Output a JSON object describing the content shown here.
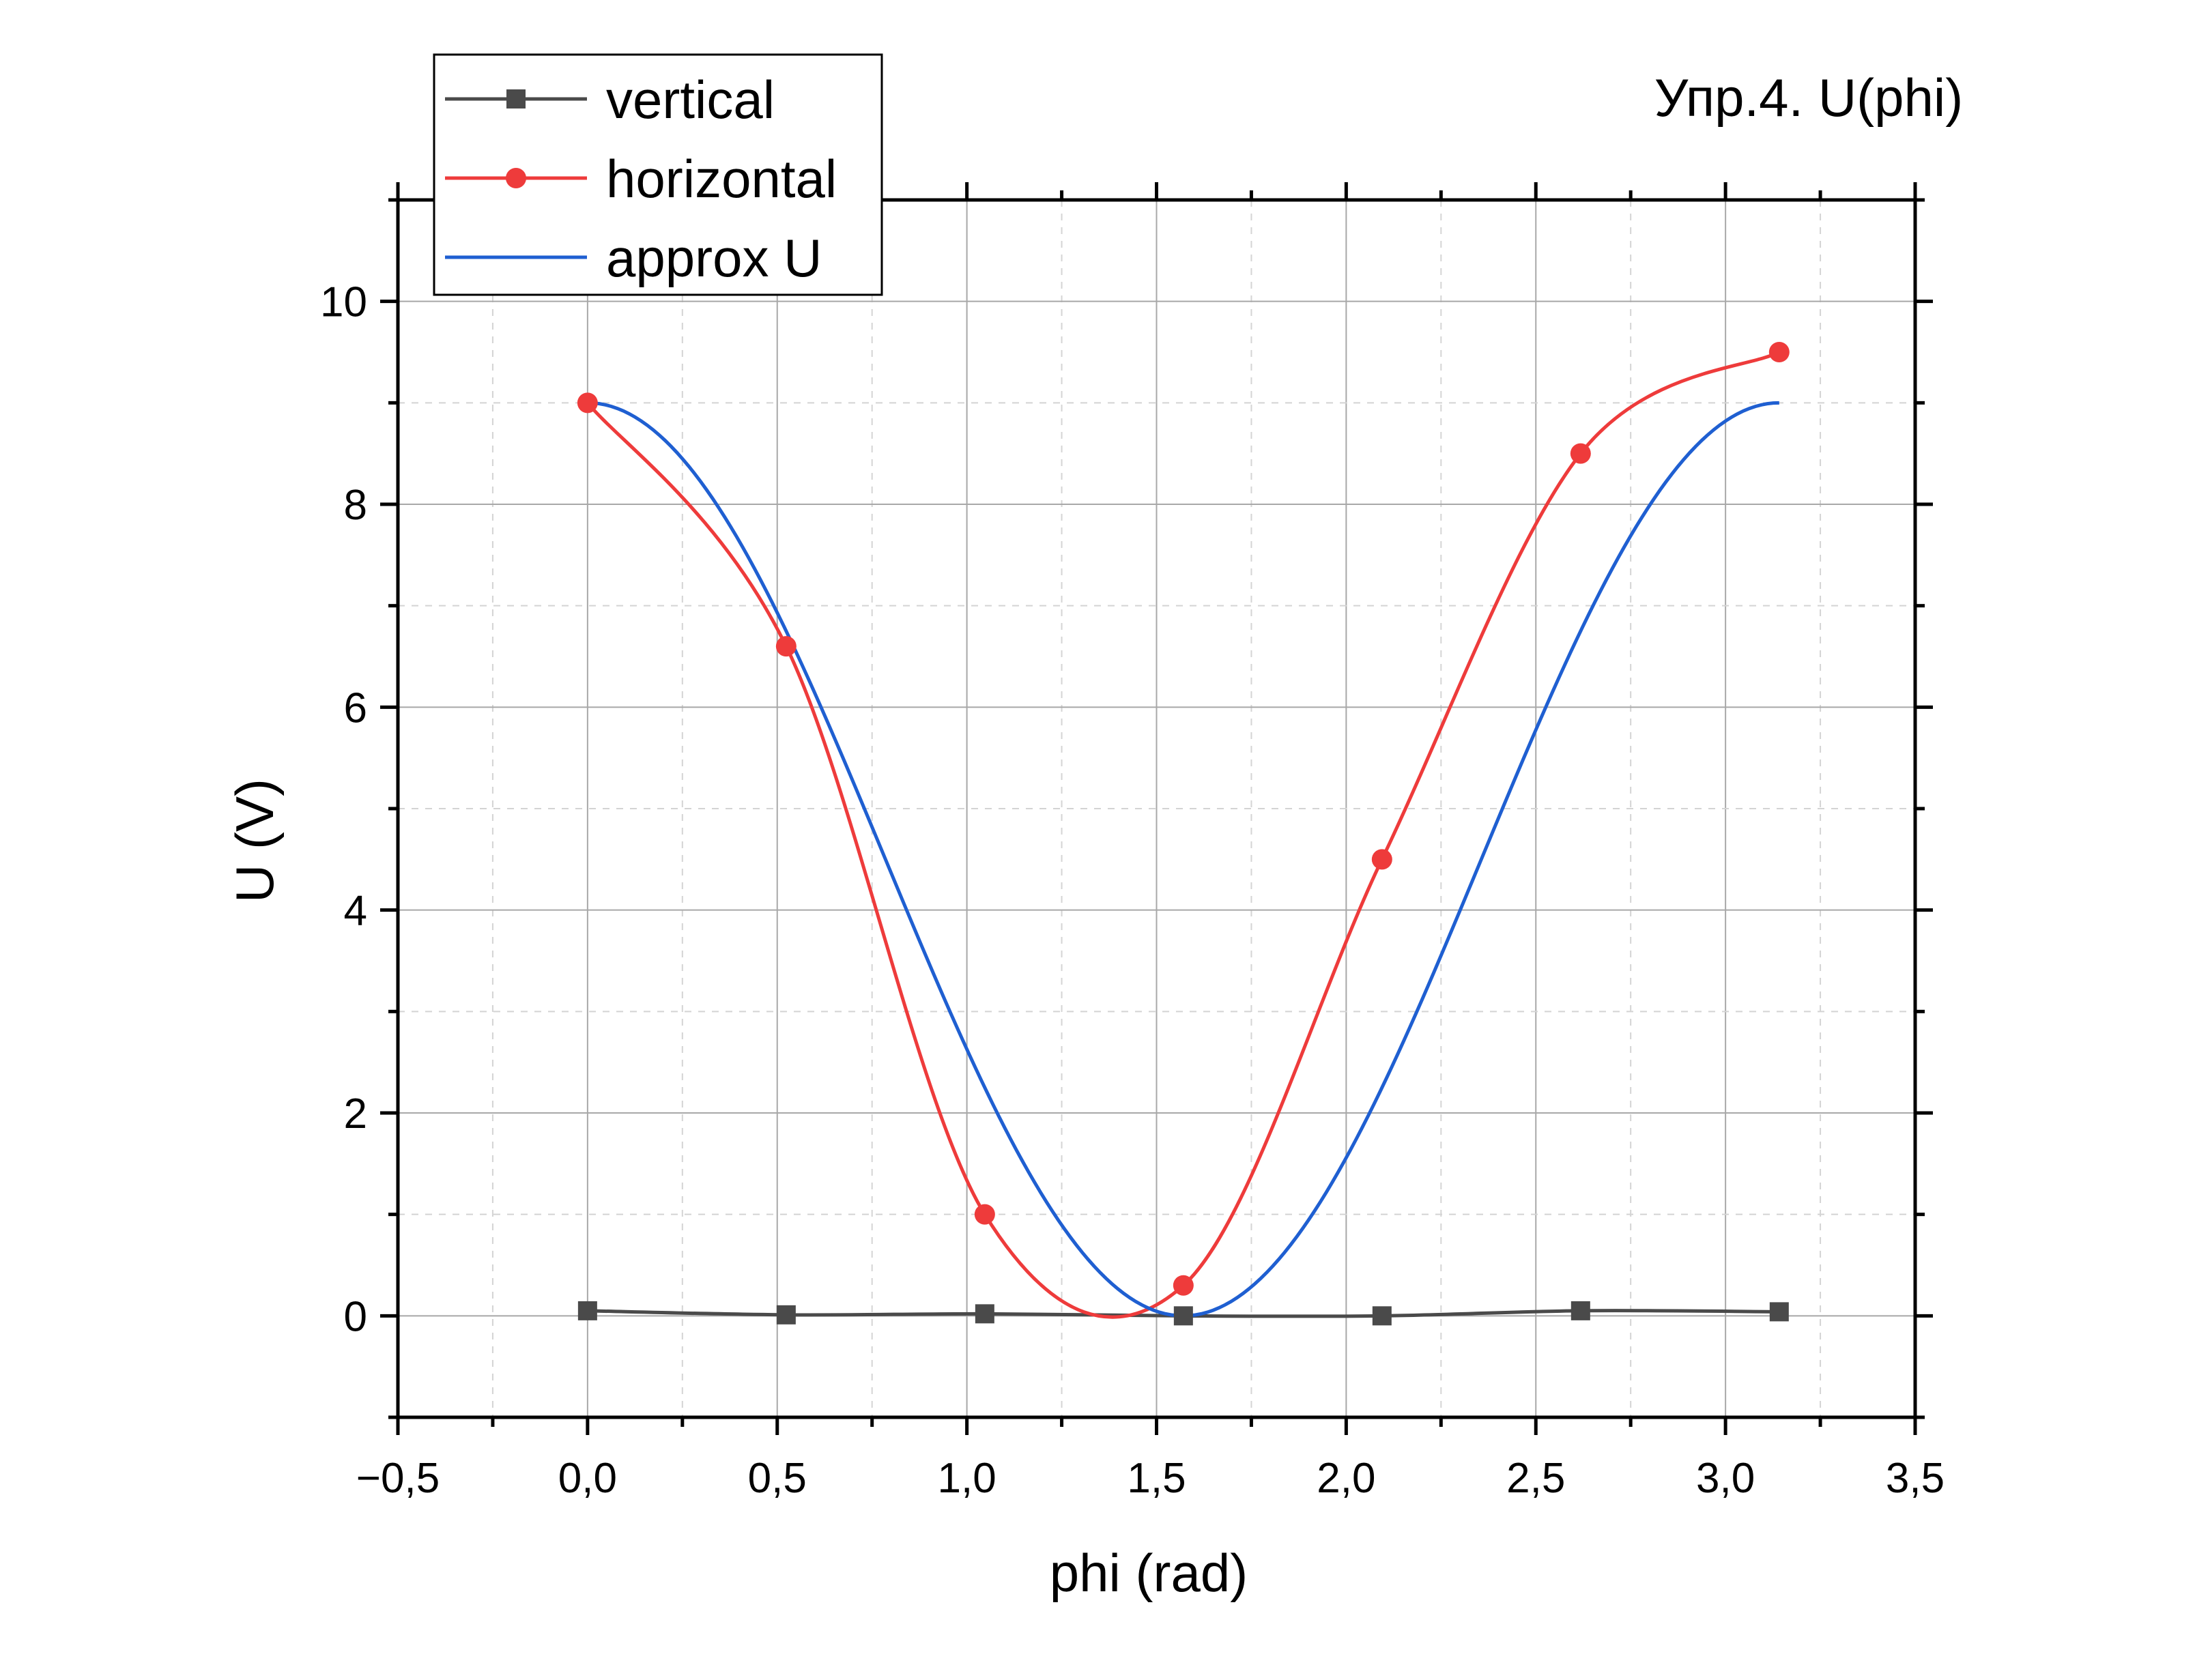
{
  "chart_data": {
    "type": "line",
    "title": "Упр.4. U(phi)",
    "xlabel": "phi (rad)",
    "ylabel": "U (V)",
    "xlim": [
      -0.5,
      3.5
    ],
    "ylim": [
      -1,
      11
    ],
    "x_ticks": [
      -0.5,
      0.0,
      0.5,
      1.0,
      1.5,
      2.0,
      2.5,
      3.0,
      3.5
    ],
    "x_tick_labels": [
      "−0,5",
      "0,0",
      "0,5",
      "1,0",
      "1,5",
      "2,0",
      "2,5",
      "3,0",
      "3,5"
    ],
    "y_ticks": [
      0,
      2,
      4,
      6,
      8,
      10
    ],
    "y_tick_labels": [
      "0",
      "2",
      "4",
      "6",
      "8",
      "10"
    ],
    "grid": true,
    "legend_position": "top-left, outside above plot",
    "series": [
      {
        "name": "vertical",
        "color": "#4a4a4a",
        "marker": "square",
        "x": [
          0.0,
          0.5236,
          1.0472,
          1.5708,
          2.0944,
          2.618,
          3.1416
        ],
        "y": [
          0.05,
          0.01,
          0.02,
          0.0,
          0.0,
          0.05,
          0.04
        ]
      },
      {
        "name": "horizontal",
        "color": "#ee3b3b",
        "marker": "circle",
        "x": [
          0.0,
          0.5236,
          1.0472,
          1.5708,
          2.0944,
          2.618,
          3.1416
        ],
        "y": [
          9.0,
          6.6,
          1.0,
          0.3,
          4.5,
          8.5,
          9.5
        ]
      },
      {
        "name": "approx U",
        "color": "#1f5fd1",
        "marker": "none",
        "function": "9*cos(x)^2 over [0, pi]"
      }
    ]
  }
}
